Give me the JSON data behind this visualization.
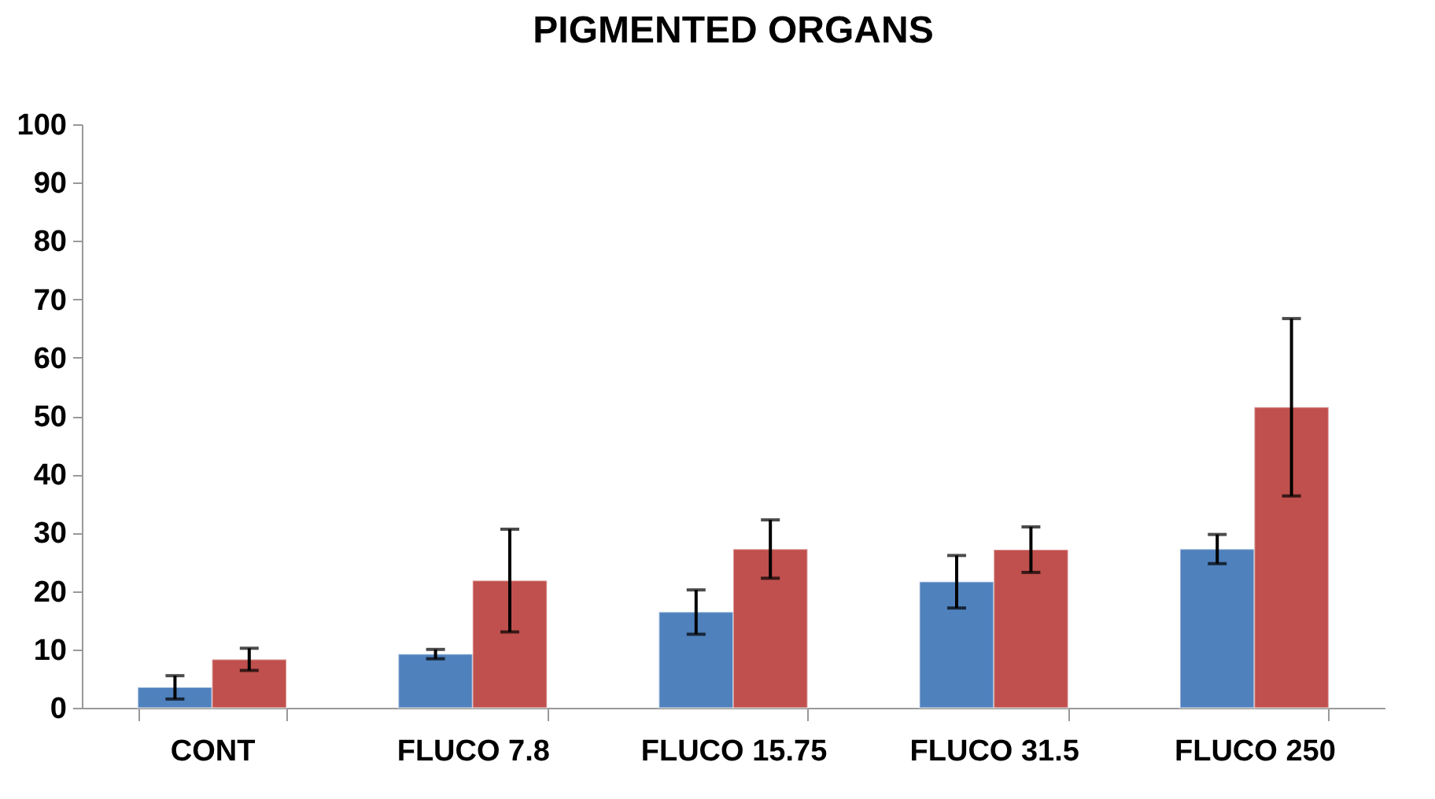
{
  "chart_data": {
    "type": "bar",
    "title": "PIGMENTED ORGANS",
    "categories": [
      "CONT",
      "FLUCO 7.8",
      "FLUCO 15.75",
      "FLUCO 31.5",
      "FLUCO 250"
    ],
    "series": [
      {
        "color": "#4f81bd",
        "values": [
          3.5,
          9.2,
          16.4,
          21.6,
          27.2
        ],
        "errors": [
          2,
          0.8,
          3.8,
          4.5,
          2.5
        ]
      },
      {
        "color": "#c0504d",
        "values": [
          8.3,
          21.8,
          27.2,
          27.1,
          51.5
        ],
        "errors": [
          1.9,
          8.8,
          5,
          3.9,
          15.2
        ]
      }
    ],
    "ylim": [
      0,
      100
    ],
    "yticks": [
      0,
      10,
      20,
      30,
      40,
      50,
      60,
      70,
      80,
      90,
      100
    ],
    "grid": false,
    "legend": false
  }
}
